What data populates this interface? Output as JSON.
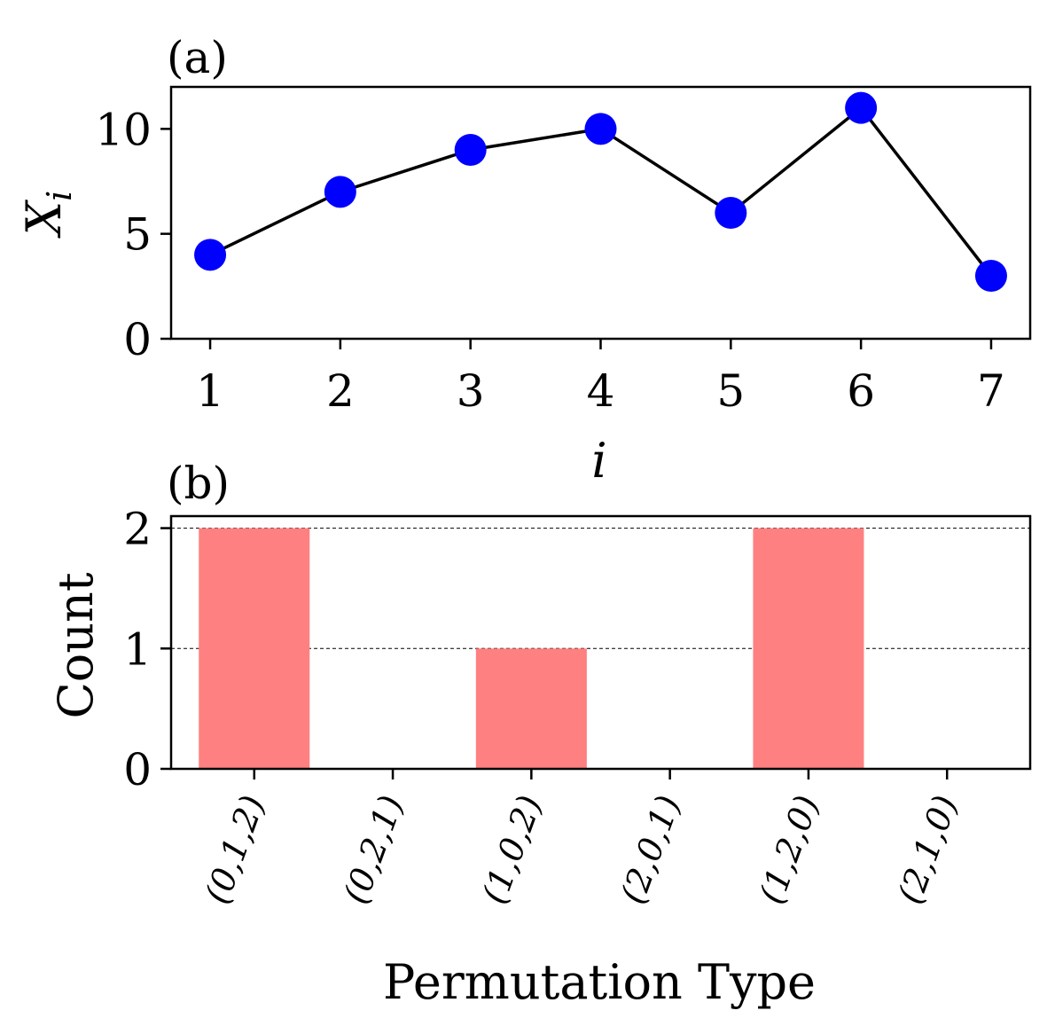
{
  "colors": {
    "line": "#000000",
    "marker": "#0000ff",
    "bar": "#ff8080",
    "grid": "#000000",
    "background": "#ffffff"
  },
  "chart_data": [
    {
      "panel_label": "(a)",
      "type": "line",
      "x": [
        1,
        2,
        3,
        4,
        5,
        6,
        7
      ],
      "y": [
        4,
        7,
        9,
        10,
        6,
        11,
        3
      ],
      "xlabel": "i",
      "ylabel": "X",
      "ylabel_subscript": "i",
      "xlim": [
        0.7,
        7.3
      ],
      "ylim": [
        0,
        12
      ],
      "x_ticks": [
        1,
        2,
        3,
        4,
        5,
        6,
        7
      ],
      "y_ticks": [
        0,
        5,
        10
      ],
      "marker": "circle",
      "grid": false
    },
    {
      "panel_label": "(b)",
      "type": "bar",
      "categories": [
        "(0,1,2)",
        "(0,2,1)",
        "(1,0,2)",
        "(2,0,1)",
        "(1,2,0)",
        "(2,1,0)"
      ],
      "values": [
        2,
        0,
        1,
        0,
        2,
        0
      ],
      "xlabel": "Permutation Type",
      "ylabel": "Count",
      "ylim": [
        0,
        2.1
      ],
      "y_ticks": [
        0,
        1,
        2
      ],
      "grid": "horizontal dashed",
      "tick_rotation": "70 degrees"
    }
  ]
}
